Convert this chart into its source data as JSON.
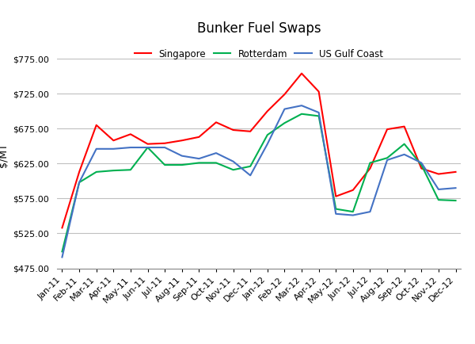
{
  "title": "Bunker Fuel Swaps",
  "ylabel": "$/MT",
  "labels": [
    "Jan-11",
    "Feb-11",
    "Mar-11",
    "Apr-11",
    "May-11",
    "Jun-11",
    "Jul-11",
    "Aug-11",
    "Sep-11",
    "Oct-11",
    "Nov-11",
    "Dec-11",
    "Jan-12",
    "Feb-12",
    "Mar-12",
    "Apr-12",
    "May-12",
    "Jun-12",
    "Jul-12",
    "Aug-12",
    "Sep-12",
    "Oct-12",
    "Nov-12",
    "Dec-12"
  ],
  "singapore": [
    533,
    613,
    680,
    658,
    667,
    653,
    654,
    658,
    663,
    684,
    673,
    671,
    700,
    724,
    754,
    728,
    578,
    587,
    618,
    674,
    678,
    618,
    610,
    613
  ],
  "rotterdam": [
    499,
    598,
    613,
    615,
    616,
    648,
    623,
    623,
    626,
    626,
    616,
    621,
    666,
    683,
    696,
    693,
    560,
    556,
    626,
    633,
    653,
    623,
    573,
    572
  ],
  "usgc": [
    491,
    598,
    646,
    646,
    648,
    648,
    648,
    636,
    632,
    640,
    628,
    608,
    653,
    703,
    708,
    698,
    553,
    551,
    556,
    630,
    638,
    626,
    588,
    590
  ],
  "singapore_color": "#FF0000",
  "rotterdam_color": "#00B050",
  "usgc_color": "#4472C4",
  "ylim_min": 475,
  "ylim_max": 800,
  "yticks": [
    475,
    525,
    575,
    625,
    675,
    725,
    775
  ],
  "bg_color": "#FFFFFF",
  "grid_color": "#C0C0C0",
  "title_fontsize": 12,
  "axis_fontsize": 8,
  "legend_fontsize": 8.5
}
